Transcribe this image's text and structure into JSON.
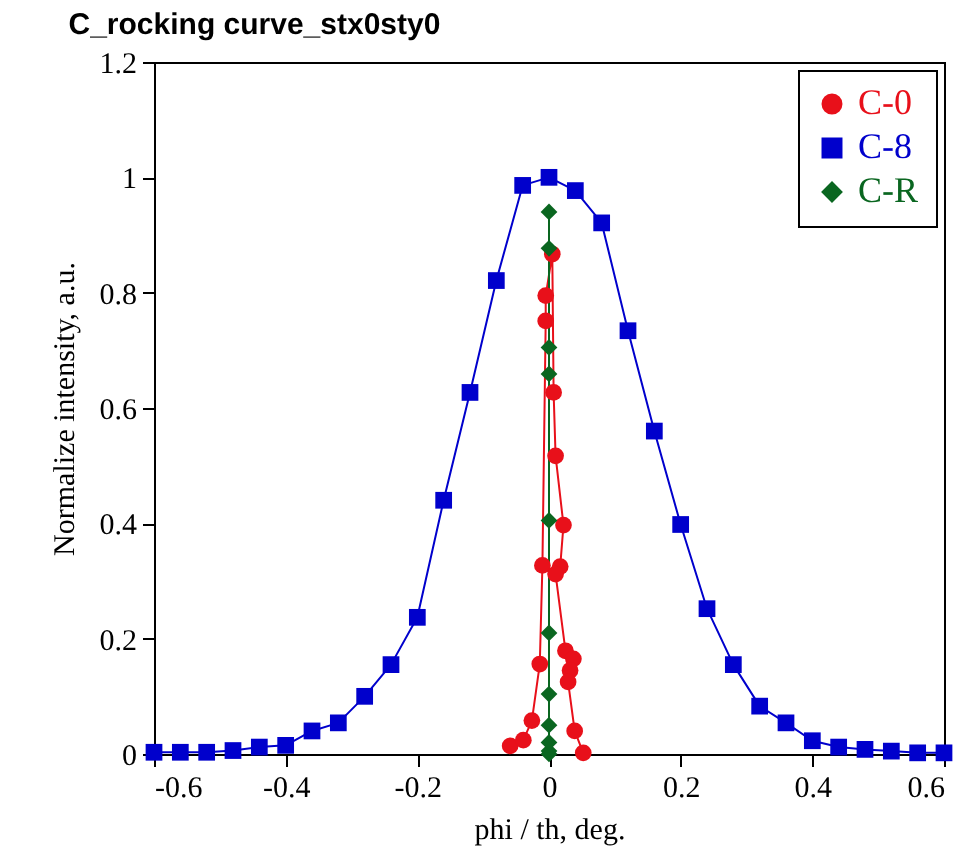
{
  "chart_data": {
    "type": "line",
    "title": "C_rocking curve_stx0sty0",
    "xlabel": "phi / th, deg.",
    "ylabel": "Normalize intensity, a.u.",
    "xlim": [
      -0.6,
      0.6
    ],
    "xticks": [
      -0.6,
      -0.4,
      -0.2,
      0,
      0.2,
      0.4,
      0.6
    ],
    "ylim": [
      0,
      1.2
    ],
    "yticks": [
      0,
      0.2,
      0.4,
      0.6,
      0.8,
      1,
      1.2
    ],
    "grid": false,
    "legend": "top right",
    "series": [
      {
        "name": "C-0",
        "color": "#e8101a",
        "marker": "circle",
        "x": [
          -0.059,
          -0.039,
          -0.026,
          -0.014,
          -0.01,
          -0.005,
          -0.005,
          0.005,
          0.007,
          0.01,
          0.022,
          0.017,
          0.01,
          0.025,
          0.037,
          0.032,
          0.029,
          0.039,
          0.052
        ],
        "values": [
          0.014,
          0.024,
          0.058,
          0.156,
          0.327,
          0.751,
          0.795,
          0.867,
          0.627,
          0.517,
          0.397,
          0.325,
          0.312,
          0.179,
          0.165,
          0.145,
          0.125,
          0.04,
          0.002
        ]
      },
      {
        "name": "C-8",
        "color": "#0000cc",
        "marker": "square",
        "x": [
          -0.6,
          -0.56,
          -0.52,
          -0.48,
          -0.44,
          -0.4,
          -0.36,
          -0.32,
          -0.28,
          -0.24,
          -0.2,
          -0.16,
          -0.12,
          -0.08,
          -0.04,
          0,
          0.04,
          0.08,
          0.12,
          0.16,
          0.2,
          0.24,
          0.28,
          0.32,
          0.36,
          0.4,
          0.44,
          0.48,
          0.52,
          0.56,
          0.6
        ],
        "values": [
          0.003,
          0.003,
          0.003,
          0.006,
          0.012,
          0.015,
          0.04,
          0.054,
          0.1,
          0.155,
          0.237,
          0.44,
          0.627,
          0.821,
          0.986,
          1.0,
          0.977,
          0.921,
          0.734,
          0.56,
          0.398,
          0.252,
          0.155,
          0.083,
          0.054,
          0.023,
          0.012,
          0.008,
          0.005,
          0.002,
          0.002
        ]
      },
      {
        "name": "C-R",
        "color": "#0a6620",
        "marker": "diamond",
        "x": [
          0,
          0,
          0,
          0,
          0,
          0,
          0,
          0,
          0,
          0,
          0
        ],
        "values": [
          0,
          0.005,
          0.02,
          0.05,
          0.104,
          0.21,
          0.405,
          0.659,
          0.705,
          0.877,
          0.94
        ]
      }
    ]
  }
}
